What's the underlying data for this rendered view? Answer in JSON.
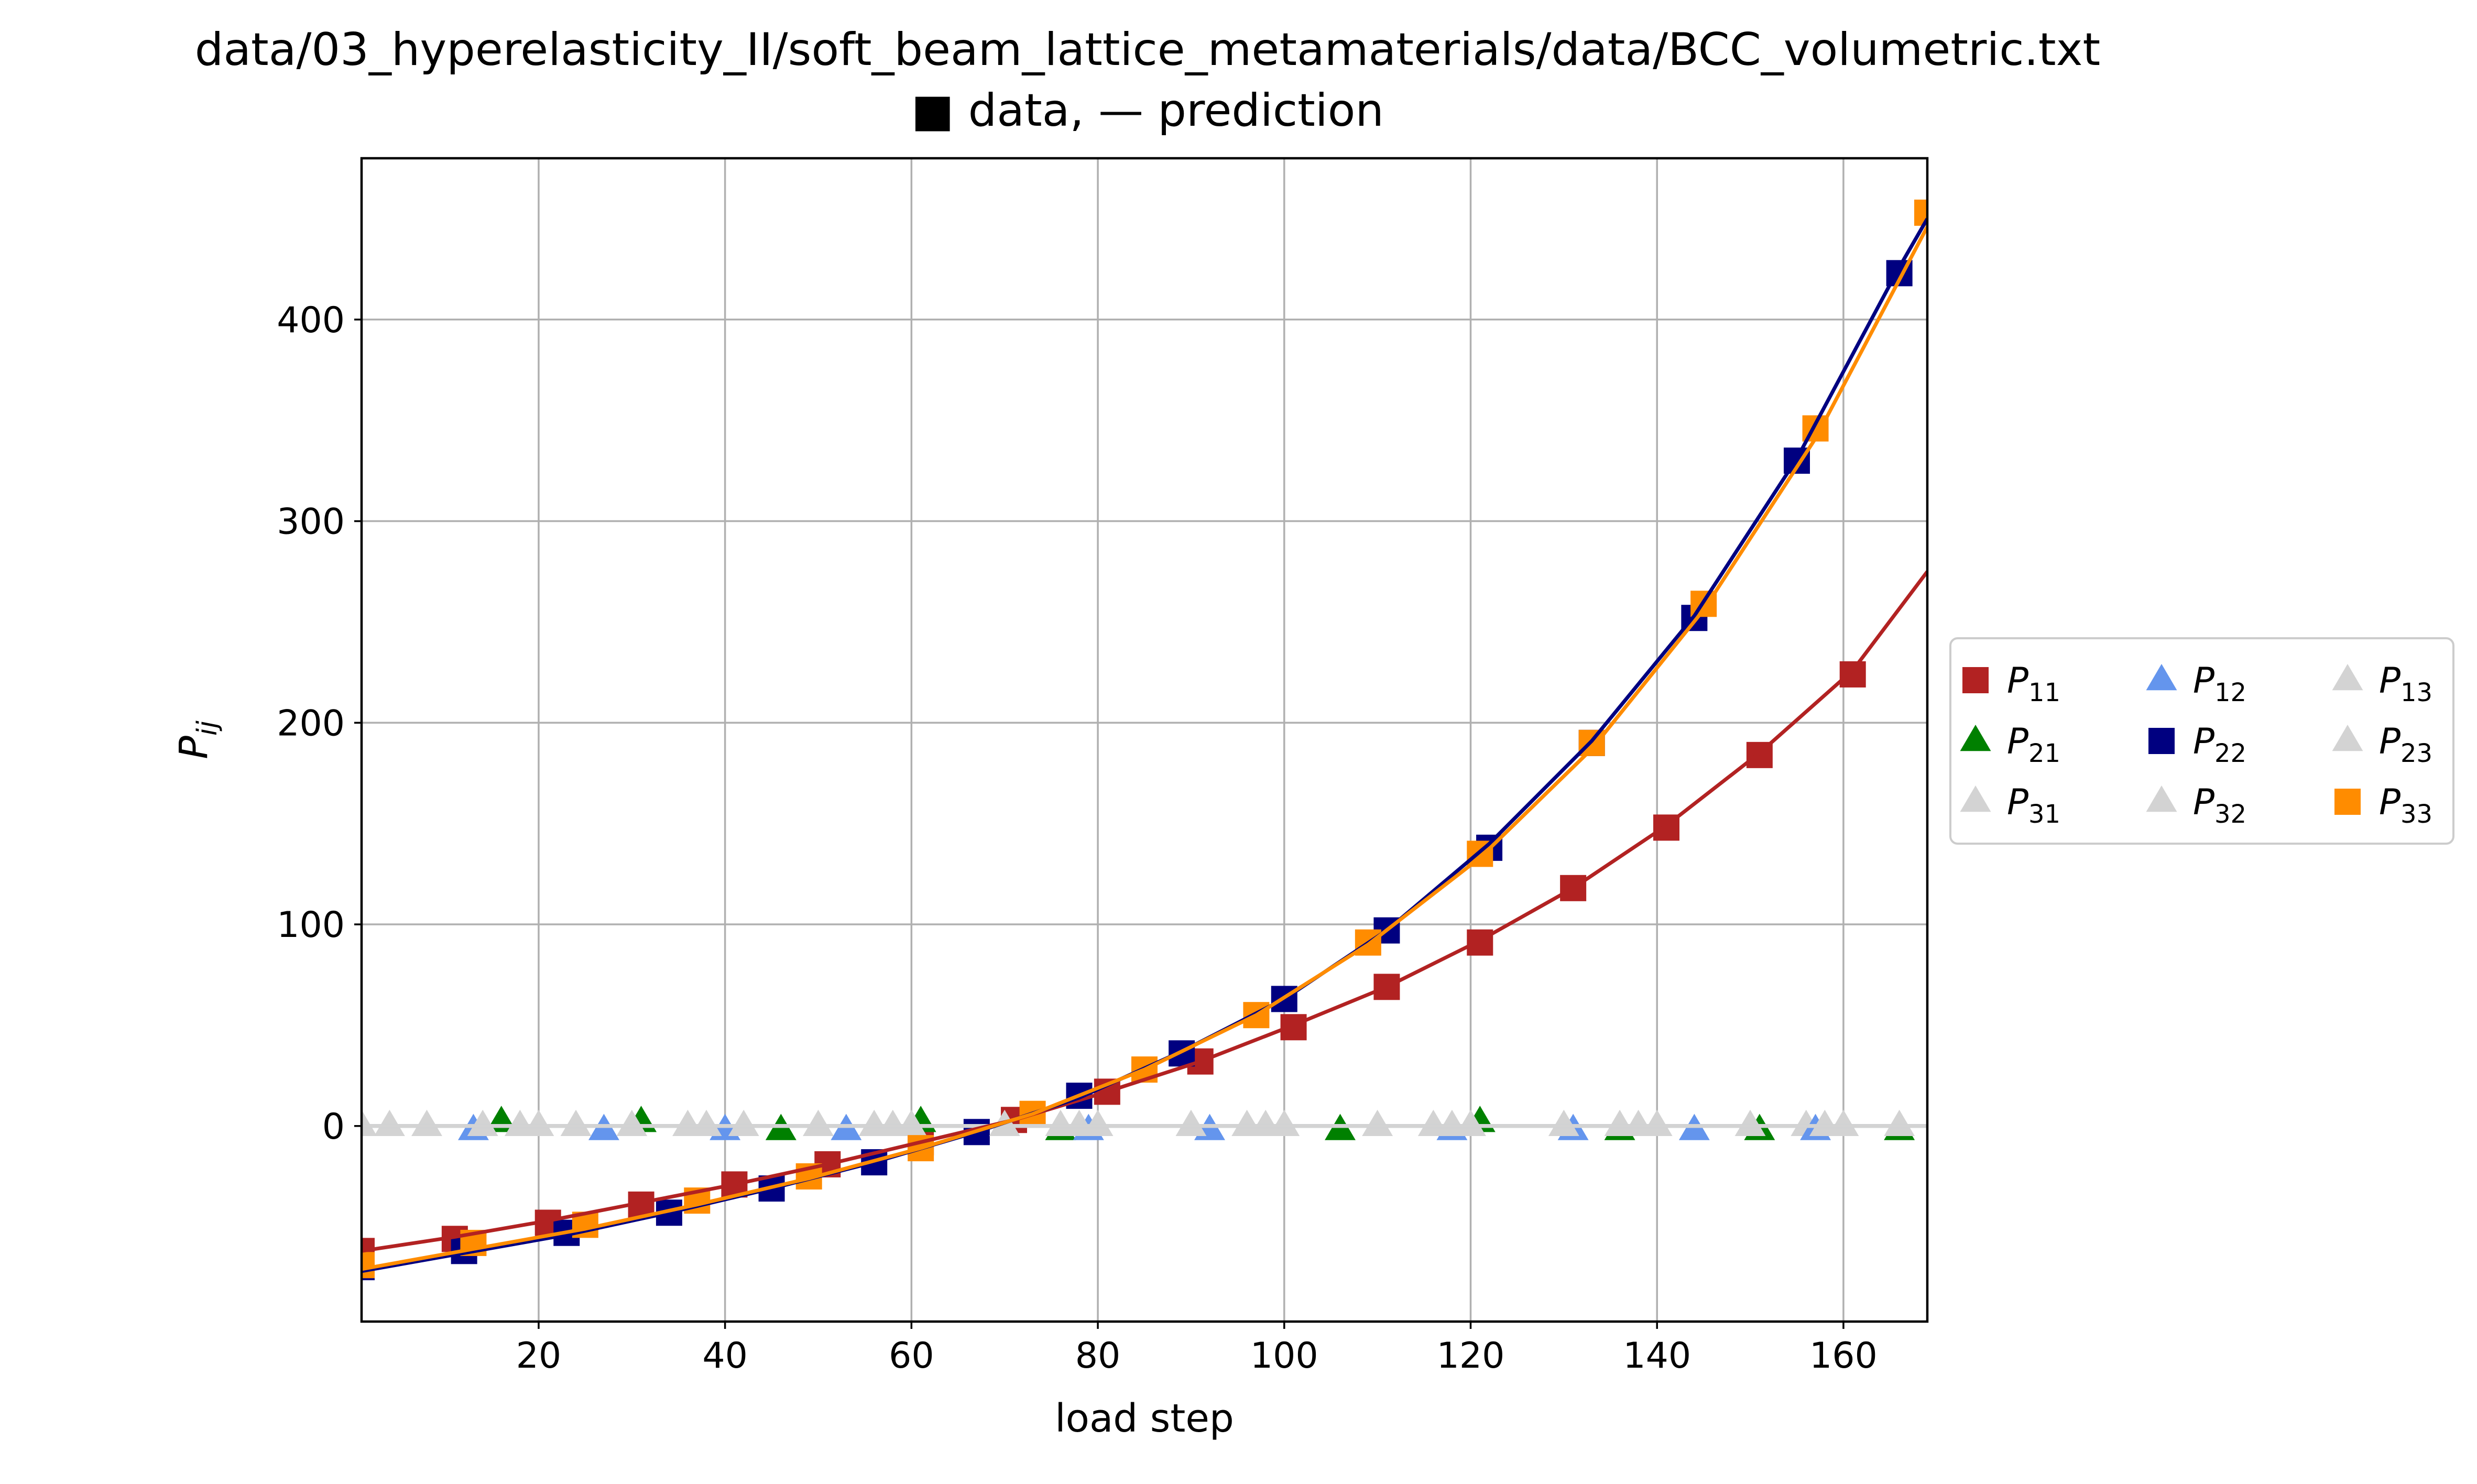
{
  "chart_data": {
    "type": "line",
    "title": "data/03_hyperelasticity_II/soft_beam_lattice_metamaterials/data/BCC_volumetric.txt",
    "subtitle": "■ data, — prediction",
    "xlabel": "load step",
    "ylabel_base": "P",
    "ylabel_sub": "ij",
    "xlim": [
      1,
      169
    ],
    "ylim": [
      -97,
      480
    ],
    "xticks": [
      20,
      40,
      60,
      80,
      100,
      120,
      140,
      160
    ],
    "yticks": [
      0,
      100,
      200,
      300,
      400
    ],
    "grid": true,
    "legend_position": "right-outside",
    "series": [
      {
        "name": "P11",
        "base": "P",
        "sub": "11",
        "color": "#b22222",
        "marker": "square",
        "x": [
          1,
          11,
          21,
          31,
          41,
          51,
          61,
          71,
          81,
          91,
          101,
          111,
          121,
          131,
          141,
          151,
          161
        ],
        "y": [
          -62,
          -56,
          -48,
          -39,
          -29,
          -19,
          -8,
          3,
          17,
          32,
          49,
          69,
          91,
          118,
          148,
          184,
          224
        ],
        "pred_x": [
          1,
          11,
          21,
          31,
          41,
          51,
          61,
          71,
          81,
          91,
          101,
          111,
          121,
          131,
          141,
          151,
          161,
          169
        ],
        "pred_y": [
          -62,
          -55,
          -47,
          -38,
          -29,
          -19,
          -8,
          3,
          17,
          32,
          50,
          69,
          92,
          118,
          149,
          185,
          226,
          275
        ]
      },
      {
        "name": "P21",
        "base": "P",
        "sub": "21",
        "color": "#008000",
        "marker": "triangle",
        "x": [
          16,
          31,
          46,
          61,
          76,
          106,
          121,
          136,
          151,
          166
        ],
        "y": [
          2,
          2,
          -2,
          2,
          -2,
          -2,
          2,
          -2,
          -2,
          -2
        ]
      },
      {
        "name": "P31",
        "base": "P",
        "sub": "31",
        "color": "#d3d3d3",
        "marker": "triangle",
        "x": [
          1,
          18,
          36,
          56,
          76,
          96,
          116,
          136,
          156
        ],
        "y": [
          0,
          0,
          0,
          0,
          0,
          0,
          0,
          0,
          0
        ]
      },
      {
        "name": "P12",
        "base": "P",
        "sub": "12",
        "color": "#6495ed",
        "marker": "triangle",
        "x": [
          13,
          27,
          40,
          53,
          79,
          92,
          118,
          131,
          144,
          157
        ],
        "y": [
          -2,
          -2,
          -2,
          -2,
          -2,
          -2,
          -2,
          -2,
          -2,
          -2
        ]
      },
      {
        "name": "P22",
        "base": "P",
        "sub": "22",
        "color": "#000080",
        "marker": "square",
        "x": [
          1,
          12,
          23,
          34,
          45,
          56,
          67,
          78,
          89,
          100,
          111,
          122,
          133,
          144,
          155,
          166
        ],
        "y": [
          -70,
          -62,
          -53,
          -43,
          -31,
          -18,
          -3,
          15,
          36,
          63,
          97,
          138,
          190,
          252,
          330,
          423
        ],
        "pred_x": [
          1,
          12,
          23,
          34,
          45,
          56,
          67,
          78,
          89,
          100,
          111,
          122,
          133,
          144,
          155,
          166,
          169
        ],
        "pred_y": [
          -72,
          -63,
          -54,
          -43,
          -31,
          -18,
          -3,
          14,
          37,
          63,
          97,
          140,
          191,
          253,
          331,
          426,
          450
        ]
      },
      {
        "name": "P32",
        "base": "P",
        "sub": "32",
        "color": "#d3d3d3",
        "marker": "triangle",
        "x": [
          8,
          24,
          42,
          60,
          78,
          98,
          118,
          138,
          158
        ],
        "y": [
          0,
          0,
          0,
          0,
          0,
          0,
          0,
          0,
          0
        ]
      },
      {
        "name": "P13",
        "base": "P",
        "sub": "13",
        "color": "#d3d3d3",
        "marker": "triangle",
        "x": [
          4,
          20,
          38,
          58,
          80,
          100,
          120,
          140,
          160
        ],
        "y": [
          0,
          0,
          0,
          0,
          0,
          0,
          0,
          0,
          0
        ]
      },
      {
        "name": "P23",
        "base": "P",
        "sub": "23",
        "color": "#d3d3d3",
        "marker": "triangle",
        "x": [
          14,
          30,
          50,
          70,
          90,
          110,
          130,
          150,
          166
        ],
        "y": [
          0,
          0,
          0,
          0,
          0,
          0,
          0,
          0,
          0
        ]
      },
      {
        "name": "P33",
        "base": "P",
        "sub": "33",
        "color": "#ff8c00",
        "marker": "square",
        "x": [
          1,
          13,
          25,
          37,
          49,
          61,
          73,
          85,
          97,
          109,
          121,
          133,
          145,
          157,
          169
        ],
        "y": [
          -69,
          -58,
          -49,
          -37,
          -25,
          -11,
          6,
          28,
          55,
          91,
          135,
          190,
          259,
          346,
          453
        ],
        "pred_x": [
          1,
          13,
          25,
          37,
          49,
          61,
          73,
          85,
          97,
          109,
          121,
          133,
          145,
          157,
          169
        ],
        "pred_y": [
          -71,
          -61,
          -51,
          -39,
          -26,
          -11,
          6,
          28,
          55,
          90,
          133,
          187,
          256,
          341,
          446
        ]
      }
    ]
  }
}
